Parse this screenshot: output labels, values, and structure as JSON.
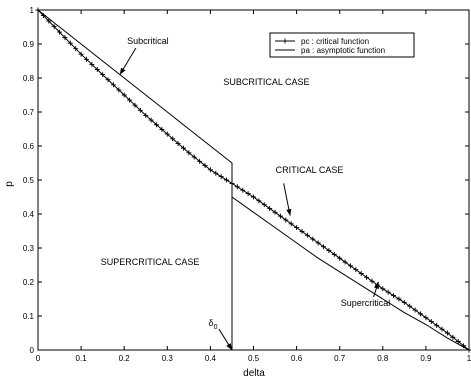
{
  "chart_data": {
    "type": "line",
    "title": "",
    "xlabel": "delta",
    "ylabel": "p",
    "xlim": [
      0,
      1
    ],
    "ylim": [
      0,
      1
    ],
    "grid": false,
    "legend_position": "top-right",
    "x_ticks": [
      0,
      0.1,
      0.2,
      0.3,
      0.4,
      0.5,
      0.6,
      0.7,
      0.8,
      0.9,
      1
    ],
    "x_tick_labels": [
      "0",
      "0.1",
      "0.2",
      "0.3",
      "0.4",
      "0.5",
      "0.6",
      "0.7",
      "0.8",
      "0.9",
      "1"
    ],
    "y_ticks": [
      0,
      0.1,
      0.2,
      0.3,
      0.4,
      0.5,
      0.6,
      0.7,
      0.8,
      0.9,
      1
    ],
    "y_tick_labels": [
      "0",
      "0.1",
      "0.2",
      "0.3",
      "0.4",
      "0.5",
      "0.6",
      "0.7",
      "0.8",
      "0.9",
      "1"
    ],
    "series": [
      {
        "name": "pc : critical function",
        "marker": "+",
        "x": [
          0,
          0.05,
          0.1,
          0.15,
          0.2,
          0.25,
          0.3,
          0.35,
          0.4,
          0.45,
          0.5,
          0.55,
          0.6,
          0.65,
          0.7,
          0.75,
          0.8,
          0.85,
          0.9,
          0.95,
          1
        ],
        "y": [
          1,
          0.935,
          0.87,
          0.81,
          0.75,
          0.69,
          0.635,
          0.58,
          0.53,
          0.49,
          0.45,
          0.405,
          0.36,
          0.315,
          0.27,
          0.225,
          0.18,
          0.14,
          0.095,
          0.05,
          0
        ]
      },
      {
        "name": "pa : asymptotic function",
        "marker": "none",
        "x": [
          0,
          0.05,
          0.1,
          0.15,
          0.2,
          0.25,
          0.3,
          0.35,
          0.4,
          0.45,
          0.45,
          0.45,
          0.45,
          0.5,
          0.55,
          0.6,
          0.65,
          0.7,
          0.75,
          0.8,
          0.85,
          0.9,
          0.95,
          1
        ],
        "y": [
          1,
          0.95,
          0.9,
          0.85,
          0.8,
          0.75,
          0.7,
          0.65,
          0.6,
          0.55,
          0,
          0.55,
          0.45,
          0.405,
          0.36,
          0.315,
          0.27,
          0.23,
          0.19,
          0.15,
          0.11,
          0.075,
          0.035,
          0
        ]
      }
    ],
    "region_labels": [
      {
        "text": "SUBCRITICAL CASE",
        "x": 0.53,
        "y": 0.78
      },
      {
        "text": "CRITICAL CASE",
        "x": 0.63,
        "y": 0.52
      },
      {
        "text": "SUPERCRITICAL CASE",
        "x": 0.26,
        "y": 0.25
      }
    ],
    "annotations": [
      {
        "text": "Subcritical",
        "tx": 0.255,
        "ty": 0.9,
        "ax": 0.19,
        "ay": 0.81
      },
      {
        "text": "CRITICAL CASE",
        "arrow_only": true,
        "tx": 0.57,
        "ty": 0.49,
        "ax": 0.585,
        "ay": 0.395
      },
      {
        "text": "Supercritical",
        "tx": 0.76,
        "ty": 0.13,
        "ax": 0.79,
        "ay": 0.2
      },
      {
        "text": "δ0",
        "tx": 0.42,
        "ty": 0.07,
        "ax": 0.45,
        "ay": 0.0
      }
    ]
  }
}
